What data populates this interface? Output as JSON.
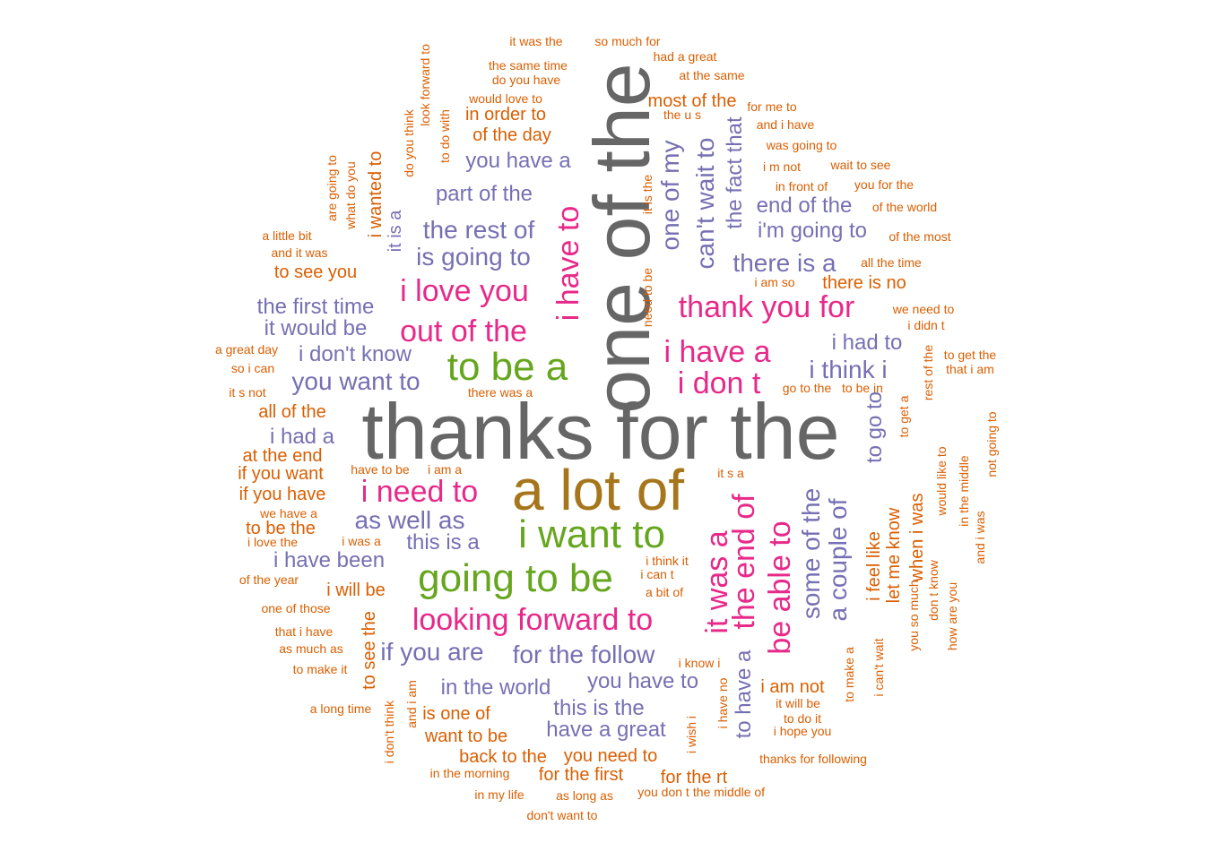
{
  "colors": {
    "orange": "#d95f02",
    "purple": "#7570b3",
    "pink": "#e7298a",
    "green": "#66a61e",
    "olive": "#a6761d",
    "gray": "#666666"
  },
  "words": [
    {
      "text": "thanks for the",
      "size": "huge",
      "color": "gray"
    },
    {
      "text": "one of the",
      "size": "huge",
      "color": "gray",
      "vertical": true
    },
    {
      "text": "a lot of",
      "size": "xxxl",
      "color": "olive"
    },
    {
      "text": "i want to",
      "size": "xxl",
      "color": "green"
    },
    {
      "text": "going to be",
      "size": "xxl",
      "color": "green"
    },
    {
      "text": "to be a",
      "size": "xxl",
      "color": "green"
    },
    {
      "text": "i have to",
      "size": "xl",
      "color": "pink",
      "vertical": true
    },
    {
      "text": "thank you for",
      "size": "xl",
      "color": "pink"
    },
    {
      "text": "i have a",
      "size": "xl",
      "color": "pink"
    },
    {
      "text": "i don t",
      "size": "xl",
      "color": "pink"
    },
    {
      "text": "out of the",
      "size": "xl",
      "color": "pink"
    },
    {
      "text": "i love you",
      "size": "xl",
      "color": "pink"
    },
    {
      "text": "i need to",
      "size": "xl",
      "color": "pink"
    },
    {
      "text": "looking forward to",
      "size": "xl",
      "color": "pink"
    },
    {
      "text": "it was a",
      "size": "xl",
      "color": "pink",
      "vertical": true
    },
    {
      "text": "the end of",
      "size": "xl",
      "color": "pink",
      "vertical": true
    },
    {
      "text": "be able to",
      "size": "xl",
      "color": "pink",
      "vertical": true
    },
    {
      "text": "some of the",
      "size": "l",
      "color": "purple",
      "vertical": true
    },
    {
      "text": "a couple of",
      "size": "l",
      "color": "purple",
      "vertical": true
    },
    {
      "text": "one of my",
      "size": "l",
      "color": "purple",
      "vertical": true
    },
    {
      "text": "can't wait to",
      "size": "l",
      "color": "purple",
      "vertical": true
    },
    {
      "text": "the fact that",
      "size": "g",
      "color": "purple",
      "vertical": true
    },
    {
      "text": "to go to",
      "size": "g",
      "color": "purple",
      "vertical": true
    },
    {
      "text": "to have a",
      "size": "g",
      "color": "purple",
      "vertical": true
    },
    {
      "text": "the rest of",
      "size": "l",
      "color": "purple"
    },
    {
      "text": "is going to",
      "size": "l",
      "color": "purple"
    },
    {
      "text": "part of the",
      "size": "g",
      "color": "purple"
    },
    {
      "text": "you have a",
      "size": "g",
      "color": "purple"
    },
    {
      "text": "i'm going to",
      "size": "g",
      "color": "purple"
    },
    {
      "text": "end of the",
      "size": "g",
      "color": "purple"
    },
    {
      "text": "there is a",
      "size": "l",
      "color": "purple"
    },
    {
      "text": "the first time",
      "size": "g",
      "color": "purple"
    },
    {
      "text": "it would be",
      "size": "g",
      "color": "purple"
    },
    {
      "text": "i don't know",
      "size": "g",
      "color": "purple"
    },
    {
      "text": "you want to",
      "size": "l",
      "color": "purple"
    },
    {
      "text": "i had to",
      "size": "g",
      "color": "purple"
    },
    {
      "text": "i think i",
      "size": "l",
      "color": "purple"
    },
    {
      "text": "i had a",
      "size": "g",
      "color": "purple"
    },
    {
      "text": "as well as",
      "size": "l",
      "color": "purple"
    },
    {
      "text": "this is a",
      "size": "g",
      "color": "purple"
    },
    {
      "text": "i have been",
      "size": "g",
      "color": "purple"
    },
    {
      "text": "if you are",
      "size": "l",
      "color": "purple"
    },
    {
      "text": "for the follow",
      "size": "l",
      "color": "purple"
    },
    {
      "text": "in the world",
      "size": "g",
      "color": "purple"
    },
    {
      "text": "you have to",
      "size": "g",
      "color": "purple"
    },
    {
      "text": "this is the",
      "size": "g",
      "color": "purple"
    },
    {
      "text": "have a great",
      "size": "g",
      "color": "purple"
    },
    {
      "text": "it is a",
      "size": "m",
      "color": "purple",
      "vertical": true
    },
    {
      "text": "it was the",
      "size": "s",
      "color": "orange"
    },
    {
      "text": "so much for",
      "size": "s",
      "color": "orange"
    },
    {
      "text": "had a great",
      "size": "s",
      "color": "orange"
    },
    {
      "text": "the same time",
      "size": "s",
      "color": "orange"
    },
    {
      "text": "at the same",
      "size": "s",
      "color": "orange"
    },
    {
      "text": "do you have",
      "size": "s",
      "color": "orange"
    },
    {
      "text": "would love to",
      "size": "s",
      "color": "orange"
    },
    {
      "text": "most of the",
      "size": "m",
      "color": "orange"
    },
    {
      "text": "for me to",
      "size": "s",
      "color": "orange"
    },
    {
      "text": "in order to",
      "size": "m",
      "color": "orange"
    },
    {
      "text": "the u s",
      "size": "s",
      "color": "orange"
    },
    {
      "text": "and i have",
      "size": "s",
      "color": "orange"
    },
    {
      "text": "of the day",
      "size": "m",
      "color": "orange"
    },
    {
      "text": "was going to",
      "size": "s",
      "color": "orange"
    },
    {
      "text": "i m not",
      "size": "s",
      "color": "orange"
    },
    {
      "text": "wait to see",
      "size": "s",
      "color": "orange"
    },
    {
      "text": "in front of",
      "size": "s",
      "color": "orange"
    },
    {
      "text": "you for the",
      "size": "s",
      "color": "orange"
    },
    {
      "text": "of the world",
      "size": "s",
      "color": "orange"
    },
    {
      "text": "of the most",
      "size": "s",
      "color": "orange"
    },
    {
      "text": "all the time",
      "size": "s",
      "color": "orange"
    },
    {
      "text": "i am so",
      "size": "s",
      "color": "orange"
    },
    {
      "text": "there is no",
      "size": "m",
      "color": "orange"
    },
    {
      "text": "we need to",
      "size": "s",
      "color": "orange"
    },
    {
      "text": "i didn t",
      "size": "s",
      "color": "orange"
    },
    {
      "text": "to get the",
      "size": "s",
      "color": "orange"
    },
    {
      "text": "that i am",
      "size": "s",
      "color": "orange"
    },
    {
      "text": "go to the",
      "size": "s",
      "color": "orange"
    },
    {
      "text": "to be in",
      "size": "s",
      "color": "orange"
    },
    {
      "text": "a little bit",
      "size": "s",
      "color": "orange"
    },
    {
      "text": "and it was",
      "size": "s",
      "color": "orange"
    },
    {
      "text": "to see you",
      "size": "m",
      "color": "orange"
    },
    {
      "text": "a great day",
      "size": "s",
      "color": "orange"
    },
    {
      "text": "so i can",
      "size": "s",
      "color": "orange"
    },
    {
      "text": "it s not",
      "size": "s",
      "color": "orange"
    },
    {
      "text": "there was a",
      "size": "s",
      "color": "orange"
    },
    {
      "text": "all of the",
      "size": "m",
      "color": "orange"
    },
    {
      "text": "at the end",
      "size": "m",
      "color": "orange"
    },
    {
      "text": "if you want",
      "size": "m",
      "color": "orange"
    },
    {
      "text": "have to be",
      "size": "s",
      "color": "orange"
    },
    {
      "text": "i am a",
      "size": "s",
      "color": "orange"
    },
    {
      "text": "it s a",
      "size": "s",
      "color": "orange"
    },
    {
      "text": "if you have",
      "size": "m",
      "color": "orange"
    },
    {
      "text": "we have a",
      "size": "s",
      "color": "orange"
    },
    {
      "text": "to be the",
      "size": "m",
      "color": "orange"
    },
    {
      "text": "i love the",
      "size": "s",
      "color": "orange"
    },
    {
      "text": "i was a",
      "size": "s",
      "color": "orange"
    },
    {
      "text": "of the year",
      "size": "s",
      "color": "orange"
    },
    {
      "text": "i will be",
      "size": "m",
      "color": "orange"
    },
    {
      "text": "one of those",
      "size": "s",
      "color": "orange"
    },
    {
      "text": "that i have",
      "size": "s",
      "color": "orange"
    },
    {
      "text": "as much as",
      "size": "s",
      "color": "orange"
    },
    {
      "text": "to make it",
      "size": "s",
      "color": "orange"
    },
    {
      "text": "a long time",
      "size": "s",
      "color": "orange"
    },
    {
      "text": "is one of",
      "size": "m",
      "color": "orange"
    },
    {
      "text": "want to be",
      "size": "m",
      "color": "orange"
    },
    {
      "text": "back to the",
      "size": "m",
      "color": "orange"
    },
    {
      "text": "you need to",
      "size": "m",
      "color": "orange"
    },
    {
      "text": "in the morning",
      "size": "s",
      "color": "orange"
    },
    {
      "text": "for the first",
      "size": "m",
      "color": "orange"
    },
    {
      "text": "for the rt",
      "size": "m",
      "color": "orange"
    },
    {
      "text": "in my life",
      "size": "s",
      "color": "orange"
    },
    {
      "text": "as long as",
      "size": "s",
      "color": "orange"
    },
    {
      "text": "you don t",
      "size": "s",
      "color": "orange"
    },
    {
      "text": "the middle of",
      "size": "s",
      "color": "orange"
    },
    {
      "text": "don't want to",
      "size": "s",
      "color": "orange"
    },
    {
      "text": "i think it",
      "size": "s",
      "color": "orange"
    },
    {
      "text": "i can t",
      "size": "s",
      "color": "orange"
    },
    {
      "text": "a bit of",
      "size": "s",
      "color": "orange"
    },
    {
      "text": "i know i",
      "size": "s",
      "color": "orange"
    },
    {
      "text": "i am not",
      "size": "m",
      "color": "orange"
    },
    {
      "text": "it will be",
      "size": "s",
      "color": "orange"
    },
    {
      "text": "to do it",
      "size": "s",
      "color": "orange"
    },
    {
      "text": "i hope you",
      "size": "s",
      "color": "orange"
    },
    {
      "text": "thanks for following",
      "size": "s",
      "color": "orange"
    },
    {
      "text": "look forward to",
      "size": "s",
      "color": "orange",
      "vertical": true
    },
    {
      "text": "to do with",
      "size": "s",
      "color": "orange",
      "vertical": true
    },
    {
      "text": "do you think",
      "size": "s",
      "color": "orange",
      "vertical": true
    },
    {
      "text": "are going to",
      "size": "s",
      "color": "orange",
      "vertical": true
    },
    {
      "text": "what do you",
      "size": "s",
      "color": "orange",
      "vertical": true
    },
    {
      "text": "i wanted to",
      "size": "m",
      "color": "orange",
      "vertical": true
    },
    {
      "text": "it is the",
      "size": "s",
      "color": "orange",
      "vertical": true
    },
    {
      "text": "need to be",
      "size": "s",
      "color": "orange",
      "vertical": true
    },
    {
      "text": "rest of the",
      "size": "s",
      "color": "orange",
      "vertical": true
    },
    {
      "text": "to get a",
      "size": "s",
      "color": "orange",
      "vertical": true
    },
    {
      "text": "to see the",
      "size": "m",
      "color": "orange",
      "vertical": true
    },
    {
      "text": "and i am",
      "size": "s",
      "color": "orange",
      "vertical": true
    },
    {
      "text": "i don't think",
      "size": "s",
      "color": "orange",
      "vertical": true
    },
    {
      "text": "i wish i",
      "size": "s",
      "color": "orange",
      "vertical": true
    },
    {
      "text": "i have no",
      "size": "s",
      "color": "orange",
      "vertical": true
    },
    {
      "text": "to make a",
      "size": "s",
      "color": "orange",
      "vertical": true
    },
    {
      "text": "i can't wait",
      "size": "s",
      "color": "orange",
      "vertical": true
    },
    {
      "text": "i feel like",
      "size": "m",
      "color": "orange",
      "vertical": true
    },
    {
      "text": "let me know",
      "size": "m",
      "color": "orange",
      "vertical": true
    },
    {
      "text": "you so much",
      "size": "s",
      "color": "orange",
      "vertical": true
    },
    {
      "text": "when i was",
      "size": "m",
      "color": "orange",
      "vertical": true
    },
    {
      "text": "don t know",
      "size": "s",
      "color": "orange",
      "vertical": true
    },
    {
      "text": "would like to",
      "size": "s",
      "color": "orange",
      "vertical": true
    },
    {
      "text": "how are you",
      "size": "s",
      "color": "orange",
      "vertical": true
    },
    {
      "text": "in the middle",
      "size": "s",
      "color": "orange",
      "vertical": true
    },
    {
      "text": "and i was",
      "size": "s",
      "color": "orange",
      "vertical": true
    },
    {
      "text": "not going to",
      "size": "s",
      "color": "orange",
      "vertical": true
    }
  ]
}
